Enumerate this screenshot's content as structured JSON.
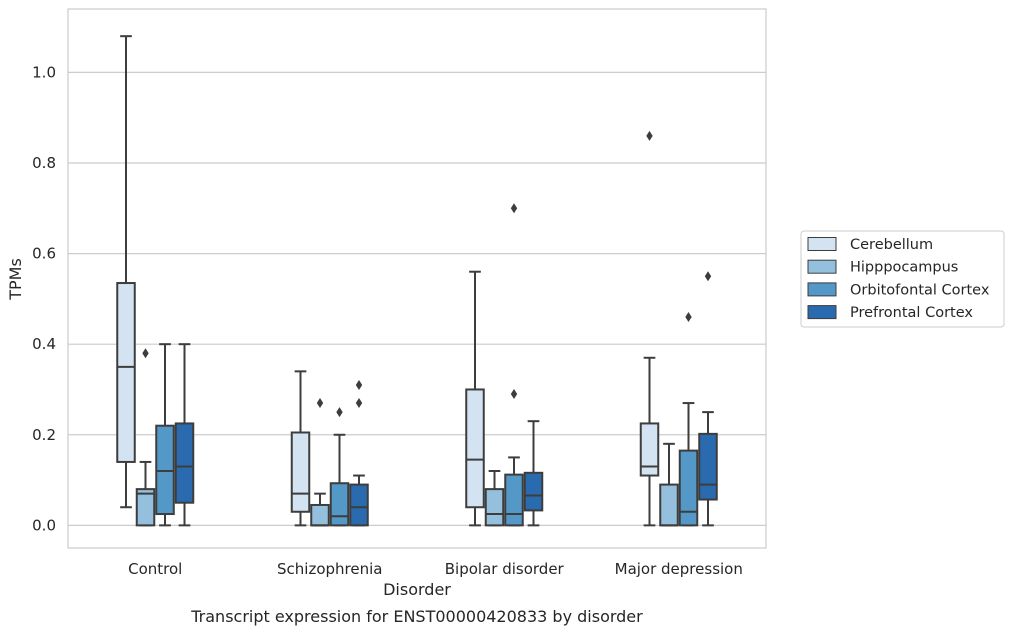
{
  "chart_data": {
    "type": "box",
    "xlabel": "Disorder",
    "ylabel": "TPMs",
    "caption": "Transcript expression for ENST00000420833 by disorder",
    "ylim": [
      -0.05,
      1.14
    ],
    "yticks": [
      0.0,
      0.2,
      0.4,
      0.6,
      0.8,
      1.0
    ],
    "ytick_labels": [
      "0.0",
      "0.2",
      "0.4",
      "0.6",
      "0.8",
      "1.0"
    ],
    "grid": "horizontal",
    "legend_position": "right",
    "categories": [
      "Control",
      "Schizophrenia",
      "Bipolar disorder",
      "Major depression"
    ],
    "series": [
      {
        "name": "Cerebellum",
        "color": "#d4e3f2",
        "boxes": [
          {
            "whislo": 0.04,
            "q1": 0.14,
            "med": 0.35,
            "q3": 0.535,
            "whishi": 1.08,
            "fliers": []
          },
          {
            "whislo": 0.0,
            "q1": 0.03,
            "med": 0.07,
            "q3": 0.205,
            "whishi": 0.34,
            "fliers": []
          },
          {
            "whislo": 0.0,
            "q1": 0.04,
            "med": 0.145,
            "q3": 0.3,
            "whishi": 0.56,
            "fliers": []
          },
          {
            "whislo": 0.0,
            "q1": 0.11,
            "med": 0.13,
            "q3": 0.225,
            "whishi": 0.37,
            "fliers": [
              0.86
            ]
          }
        ]
      },
      {
        "name": "Hipppocampus",
        "color": "#94c0de",
        "boxes": [
          {
            "whislo": 0.0,
            "q1": 0.0,
            "med": 0.07,
            "q3": 0.08,
            "whishi": 0.14,
            "fliers": [
              0.38
            ]
          },
          {
            "whislo": 0.0,
            "q1": 0.0,
            "med": 0.0,
            "q3": 0.045,
            "whishi": 0.07,
            "fliers": [
              0.27
            ]
          },
          {
            "whislo": 0.0,
            "q1": 0.0,
            "med": 0.025,
            "q3": 0.08,
            "whishi": 0.12,
            "fliers": []
          },
          {
            "whislo": 0.0,
            "q1": 0.0,
            "med": 0.0,
            "q3": 0.09,
            "whishi": 0.18,
            "fliers": []
          }
        ]
      },
      {
        "name": "Orbitofontal Cortex",
        "color": "#5498c7",
        "boxes": [
          {
            "whislo": 0.0,
            "q1": 0.025,
            "med": 0.12,
            "q3": 0.22,
            "whishi": 0.4,
            "fliers": []
          },
          {
            "whislo": 0.0,
            "q1": 0.0,
            "med": 0.02,
            "q3": 0.093,
            "whishi": 0.2,
            "fliers": [
              0.25
            ]
          },
          {
            "whislo": 0.0,
            "q1": 0.0,
            "med": 0.025,
            "q3": 0.112,
            "whishi": 0.15,
            "fliers": [
              0.29,
              0.7
            ]
          },
          {
            "whislo": 0.0,
            "q1": 0.0,
            "med": 0.03,
            "q3": 0.165,
            "whishi": 0.27,
            "fliers": [
              0.46
            ]
          }
        ]
      },
      {
        "name": "Prefrontal Cortex",
        "color": "#2a6aae",
        "boxes": [
          {
            "whislo": 0.0,
            "q1": 0.05,
            "med": 0.13,
            "q3": 0.225,
            "whishi": 0.4,
            "fliers": []
          },
          {
            "whislo": 0.0,
            "q1": 0.0,
            "med": 0.04,
            "q3": 0.09,
            "whishi": 0.11,
            "fliers": [
              0.27,
              0.31
            ]
          },
          {
            "whislo": 0.0,
            "q1": 0.033,
            "med": 0.066,
            "q3": 0.116,
            "whishi": 0.23,
            "fliers": []
          },
          {
            "whislo": 0.0,
            "q1": 0.057,
            "med": 0.09,
            "q3": 0.202,
            "whishi": 0.25,
            "fliers": [
              0.55
            ]
          }
        ]
      }
    ]
  }
}
